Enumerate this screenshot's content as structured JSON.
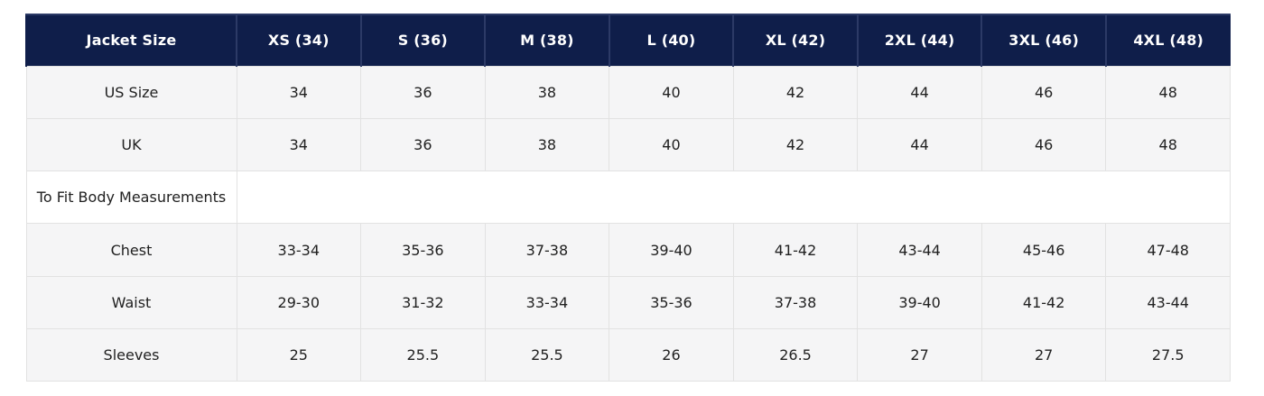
{
  "colors": {
    "header_bg": "#0f1e4a",
    "header_text": "#ffffff",
    "header_divider": "#2c3a66",
    "row_bg": "#f5f5f6",
    "span_row_bg": "#ffffff",
    "border": "#e2e2e2",
    "text": "#212121"
  },
  "chart_data": {
    "type": "table",
    "title": "Jacket Size",
    "columns": [
      "Jacket Size",
      "XS (34)",
      "S (36)",
      "M (38)",
      "L (40)",
      "XL (42)",
      "2XL (44)",
      "3XL (46)",
      "4XL (48)"
    ],
    "rows": [
      [
        "US Size",
        "34",
        "36",
        "38",
        "40",
        "42",
        "44",
        "46",
        "48"
      ],
      [
        "UK",
        "34",
        "36",
        "38",
        "40",
        "42",
        "44",
        "46",
        "48"
      ],
      [
        "To Fit Body Measurements",
        "",
        "",
        "",
        "",
        "",
        "",
        "",
        ""
      ],
      [
        "Chest",
        "33-34",
        "35-36",
        "37-38",
        "39-40",
        "41-42",
        "43-44",
        "45-46",
        "47-48"
      ],
      [
        "Waist",
        "29-30",
        "31-32",
        "33-34",
        "35-36",
        "37-38",
        "39-40",
        "41-42",
        "43-44"
      ],
      [
        "Sleeves",
        "25",
        "25.5",
        "25.5",
        "26",
        "26.5",
        "27",
        "27",
        "27.5"
      ]
    ]
  },
  "table": {
    "header": {
      "corner_label": "Jacket Size",
      "size_columns": [
        "XS (34)",
        "S (36)",
        "M (38)",
        "L (40)",
        "XL (42)",
        "2XL (44)",
        "3XL (46)",
        "4XL (48)"
      ]
    },
    "rows": [
      {
        "label": "US Size",
        "span": false,
        "values": [
          "34",
          "36",
          "38",
          "40",
          "42",
          "44",
          "46",
          "48"
        ]
      },
      {
        "label": "UK",
        "span": false,
        "values": [
          "34",
          "36",
          "38",
          "40",
          "42",
          "44",
          "46",
          "48"
        ]
      },
      {
        "label": "To Fit Body Measurements",
        "span": true,
        "values": []
      },
      {
        "label": "Chest",
        "span": false,
        "values": [
          "33-34",
          "35-36",
          "37-38",
          "39-40",
          "41-42",
          "43-44",
          "45-46",
          "47-48"
        ]
      },
      {
        "label": "Waist",
        "span": false,
        "values": [
          "29-30",
          "31-32",
          "33-34",
          "35-36",
          "37-38",
          "39-40",
          "41-42",
          "43-44"
        ]
      },
      {
        "label": "Sleeves",
        "span": false,
        "values": [
          "25",
          "25.5",
          "25.5",
          "26",
          "26.5",
          "27",
          "27",
          "27.5"
        ]
      }
    ]
  }
}
